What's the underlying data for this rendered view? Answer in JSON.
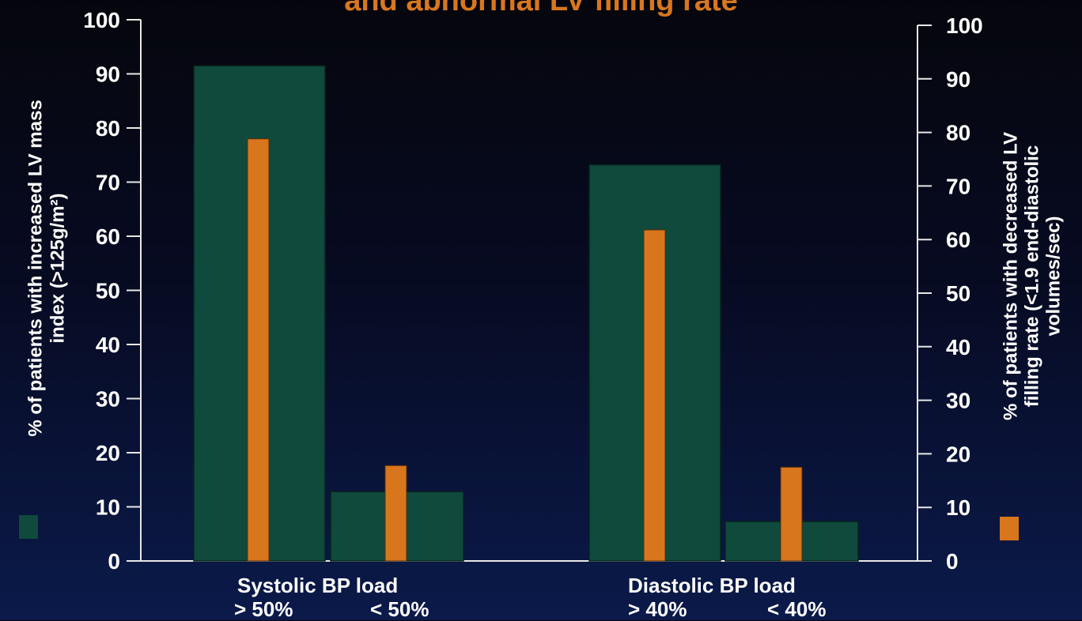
{
  "chart_data": {
    "type": "bar",
    "title": "and abnormal LV filling rate",
    "left_axis": {
      "label_line1": "% of patients with increased LV mass",
      "label_line2": "index (>125g/m²)",
      "ylim": [
        0,
        100
      ],
      "ticks": [
        "0",
        "10",
        "20",
        "30",
        "40",
        "50",
        "60",
        "70",
        "80",
        "90",
        "100"
      ]
    },
    "right_axis": {
      "label_line1": "% of patients with decreased LV",
      "label_line2": "filling rate (<1.9 end-diastolic",
      "label_line3": "volumes/sec)",
      "ylim": [
        0,
        100
      ],
      "ticks": [
        "0",
        "10",
        "20",
        "30",
        "40",
        "50",
        "60",
        "70",
        "80",
        "90",
        "100"
      ]
    },
    "groups": [
      {
        "label": "Systolic BP load",
        "sub_labels": [
          "> 50%",
          "< 50%"
        ]
      },
      {
        "label": "Diastolic BP load",
        "sub_labels": [
          "> 40%",
          "< 40%"
        ]
      }
    ],
    "categories": [
      "> 50%",
      "< 50%",
      "> 40%",
      "< 40%"
    ],
    "series": [
      {
        "color": "#0f4a3c",
        "axis": "left",
        "values": [
          91.5,
          12.8,
          73.2,
          7.3
        ]
      },
      {
        "color": "#d8761e",
        "axis": "right",
        "values": [
          78.8,
          17.8,
          61.8,
          17.5
        ]
      }
    ],
    "colors": {
      "green": "#0f4a3c",
      "orange": "#d8761e",
      "text": "#ffffff",
      "title": "#d8771e"
    }
  }
}
